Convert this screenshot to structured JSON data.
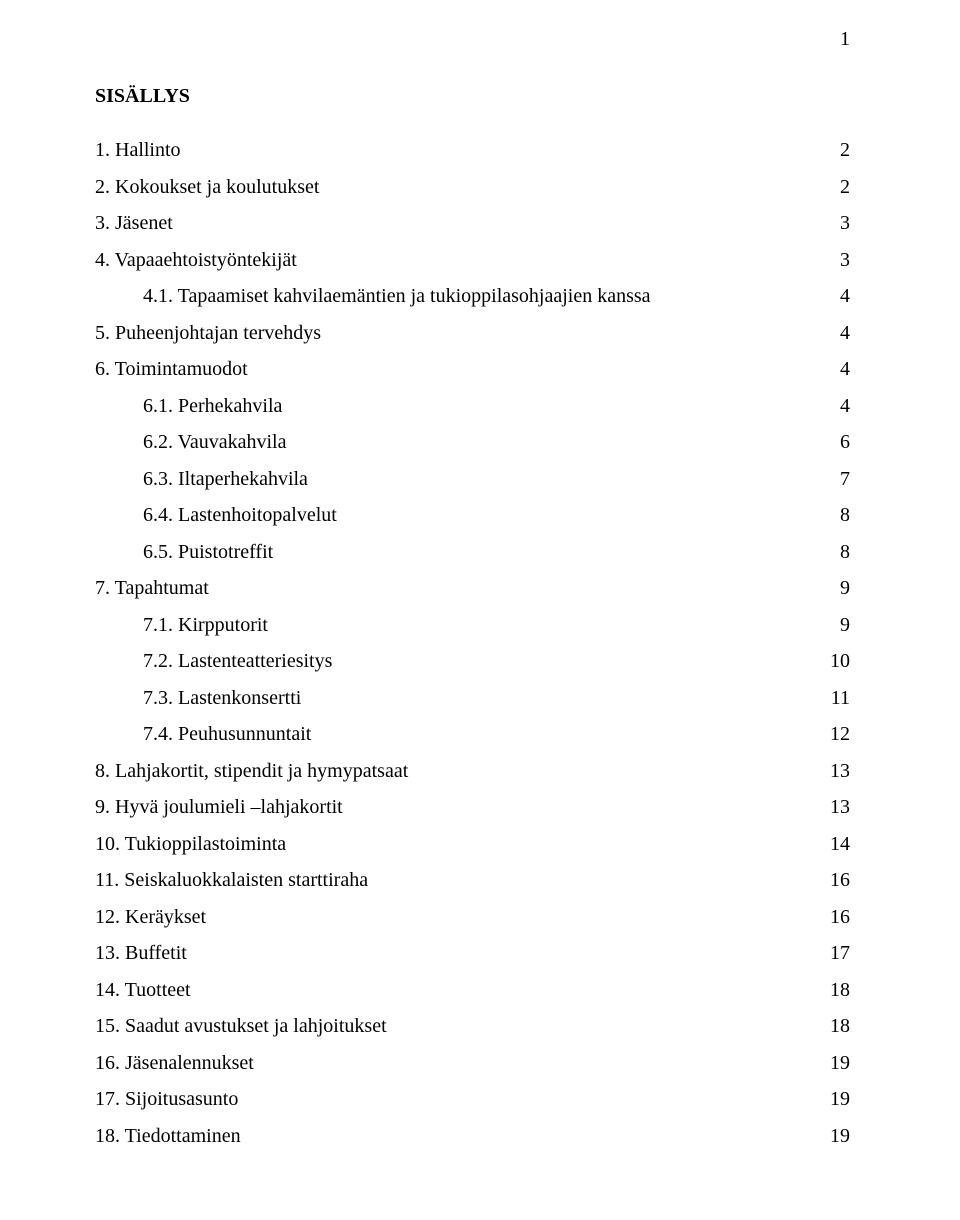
{
  "page_number": "1",
  "title": "SISÄLLYS",
  "entries": [
    {
      "label": "1. Hallinto",
      "page": "2",
      "indent": false
    },
    {
      "label": "2. Kokoukset ja koulutukset",
      "page": "2",
      "indent": false
    },
    {
      "label": "3. Jäsenet",
      "page": "3",
      "indent": false
    },
    {
      "label": "4. Vapaaehtoistyöntekijät",
      "page": "3",
      "indent": false
    },
    {
      "label": "4.1. Tapaamiset kahvilaemäntien ja tukioppilasohjaajien kanssa",
      "page": "4",
      "indent": true
    },
    {
      "label": "5. Puheenjohtajan tervehdys",
      "page": "4",
      "indent": false
    },
    {
      "label": "6. Toimintamuodot",
      "page": "4",
      "indent": false
    },
    {
      "label": "6.1. Perhekahvila",
      "page": "4",
      "indent": true
    },
    {
      "label": "6.2. Vauvakahvila",
      "page": "6",
      "indent": true
    },
    {
      "label": "6.3. Iltaperhekahvila",
      "page": "7",
      "indent": true
    },
    {
      "label": "6.4. Lastenhoitopalvelut",
      "page": "8",
      "indent": true
    },
    {
      "label": "6.5. Puistotreffit",
      "page": "8",
      "indent": true
    },
    {
      "label": "7. Tapahtumat",
      "page": "9",
      "indent": false
    },
    {
      "label": "7.1. Kirpputorit",
      "page": "9",
      "indent": true
    },
    {
      "label": "7.2. Lastenteatteriesitys",
      "page": "10",
      "indent": true
    },
    {
      "label": "7.3. Lastenkonsertti",
      "page": "11",
      "indent": true
    },
    {
      "label": "7.4. Peuhusunnuntait",
      "page": "12",
      "indent": true
    },
    {
      "label": "8. Lahjakortit, stipendit ja hymypatsaat",
      "page": "13",
      "indent": false
    },
    {
      "label": "9. Hyvä joulumieli –lahjakortit",
      "page": "13",
      "indent": false
    },
    {
      "label": "10. Tukioppilastoiminta",
      "page": "14",
      "indent": false
    },
    {
      "label": "11. Seiskaluokkalaisten starttiraha",
      "page": "16",
      "indent": false
    },
    {
      "label": "12. Keräykset",
      "page": "16",
      "indent": false
    },
    {
      "label": "13. Buffetit",
      "page": "17",
      "indent": false
    },
    {
      "label": "14. Tuotteet",
      "page": "18",
      "indent": false
    },
    {
      "label": "15. Saadut avustukset ja lahjoitukset",
      "page": "18",
      "indent": false
    },
    {
      "label": "16. Jäsenalennukset",
      "page": "19",
      "indent": false
    },
    {
      "label": "17. Sijoitusasunto",
      "page": "19",
      "indent": false
    },
    {
      "label": "18. Tiedottaminen",
      "page": "19",
      "indent": false
    }
  ]
}
